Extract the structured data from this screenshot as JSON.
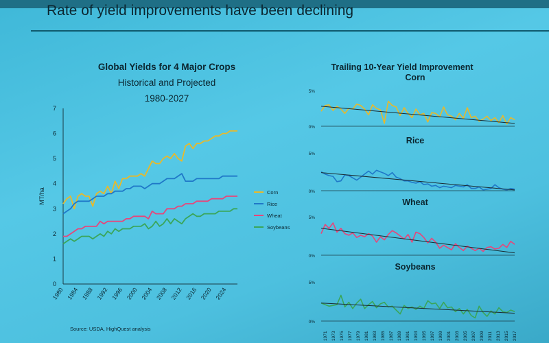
{
  "slide_title": "Rate of yield improvements have been declining",
  "source": "Source: USDA, HighQuest analysis",
  "chart_data": [
    {
      "type": "line",
      "title": "Global Yields for 4 Major Crops",
      "subtitle1": "Historical and Projected",
      "subtitle2": "1980-2027",
      "xlabel": "",
      "ylabel": "MT/ha",
      "xlim": [
        1980,
        2027
      ],
      "ylim": [
        0,
        7
      ],
      "yticks": [
        0,
        1,
        2,
        3,
        4,
        5,
        6,
        7
      ],
      "xticks": [
        1980,
        1984,
        1988,
        1992,
        1996,
        2000,
        2004,
        2008,
        2012,
        2016,
        2020,
        2024
      ],
      "x": [
        1980,
        1981,
        1982,
        1983,
        1984,
        1985,
        1986,
        1987,
        1988,
        1989,
        1990,
        1991,
        1992,
        1993,
        1994,
        1995,
        1996,
        1997,
        1998,
        1999,
        2000,
        2001,
        2002,
        2003,
        2004,
        2005,
        2006,
        2007,
        2008,
        2009,
        2010,
        2011,
        2012,
        2013,
        2014,
        2015,
        2016,
        2017,
        2018,
        2019,
        2020,
        2021,
        2022,
        2023,
        2024,
        2025,
        2026,
        2027
      ],
      "series": [
        {
          "name": "Corn",
          "color": "#e8b92a",
          "values": [
            3.2,
            3.4,
            3.5,
            3.0,
            3.5,
            3.6,
            3.5,
            3.5,
            3.1,
            3.6,
            3.7,
            3.6,
            3.9,
            3.6,
            4.1,
            3.8,
            4.2,
            4.2,
            4.3,
            4.3,
            4.3,
            4.4,
            4.3,
            4.6,
            4.9,
            4.8,
            4.8,
            5.0,
            5.1,
            5.0,
            5.2,
            5.0,
            4.9,
            5.5,
            5.6,
            5.4,
            5.6,
            5.6,
            5.7,
            5.7,
            5.8,
            5.9,
            5.9,
            6.0,
            6.0,
            6.1,
            6.1,
            6.1
          ]
        },
        {
          "name": "Rice",
          "color": "#1f78c8",
          "values": [
            2.8,
            2.9,
            3.0,
            3.2,
            3.3,
            3.3,
            3.3,
            3.3,
            3.4,
            3.5,
            3.5,
            3.5,
            3.6,
            3.6,
            3.7,
            3.7,
            3.7,
            3.8,
            3.8,
            3.9,
            3.9,
            3.9,
            3.8,
            3.9,
            4.0,
            4.0,
            4.0,
            4.1,
            4.2,
            4.2,
            4.2,
            4.3,
            4.4,
            4.1,
            4.1,
            4.1,
            4.2,
            4.2,
            4.2,
            4.2,
            4.2,
            4.2,
            4.2,
            4.3,
            4.3,
            4.3,
            4.3,
            4.3
          ]
        },
        {
          "name": "Wheat",
          "color": "#e8457a",
          "values": [
            1.9,
            1.9,
            2.0,
            2.1,
            2.2,
            2.2,
            2.3,
            2.3,
            2.3,
            2.3,
            2.5,
            2.4,
            2.5,
            2.5,
            2.5,
            2.5,
            2.5,
            2.6,
            2.6,
            2.7,
            2.7,
            2.7,
            2.7,
            2.6,
            2.9,
            2.8,
            2.8,
            2.8,
            3.0,
            3.0,
            3.0,
            3.1,
            3.1,
            3.2,
            3.2,
            3.2,
            3.3,
            3.3,
            3.3,
            3.3,
            3.4,
            3.4,
            3.4,
            3.4,
            3.5,
            3.5,
            3.5,
            3.5
          ]
        },
        {
          "name": "Soybeans",
          "color": "#3aa65a",
          "values": [
            1.6,
            1.7,
            1.8,
            1.7,
            1.8,
            1.9,
            1.9,
            1.9,
            1.8,
            1.9,
            2.0,
            1.9,
            2.1,
            2.0,
            2.2,
            2.1,
            2.2,
            2.2,
            2.2,
            2.3,
            2.3,
            2.3,
            2.4,
            2.2,
            2.3,
            2.5,
            2.3,
            2.4,
            2.6,
            2.4,
            2.6,
            2.5,
            2.4,
            2.6,
            2.7,
            2.8,
            2.7,
            2.7,
            2.8,
            2.8,
            2.8,
            2.8,
            2.9,
            2.9,
            2.9,
            2.9,
            3.0,
            3.0
          ]
        }
      ],
      "legend": [
        "Corn",
        "Rice",
        "Wheat",
        "Soybeans"
      ]
    },
    {
      "type": "line",
      "title": "Trailing 10-Year Yield Improvement",
      "ylim": [
        0,
        5
      ],
      "ytick_labels": [
        "0%",
        "5%"
      ],
      "x_labels": [
        "1971",
        "1973",
        "1975",
        "1977",
        "1979",
        "1981",
        "1983",
        "1985",
        "1987",
        "1989",
        "1991",
        "1993",
        "1995",
        "1997",
        "1999",
        "2001",
        "2003",
        "2005",
        "2007",
        "2009",
        "2011",
        "2013",
        "2015",
        "2017"
      ],
      "panels": [
        {
          "name": "Corn",
          "color": "#e8b92a",
          "trend": [
            2.8,
            0.4
          ],
          "values": [
            2.1,
            2.9,
            3.0,
            2.2,
            2.8,
            2.4,
            1.8,
            2.5,
            2.4,
            3.1,
            2.9,
            2.4,
            1.6,
            3.0,
            2.5,
            2.3,
            0.4,
            3.5,
            2.9,
            2.7,
            1.5,
            2.6,
            1.8,
            1.2,
            2.4,
            1.6,
            1.8,
            0.6,
            1.9,
            1.8,
            1.3,
            2.7,
            1.6,
            1.4,
            0.9,
            1.8,
            1.1,
            2.6,
            1.2,
            1.4,
            0.7,
            1.0,
            1.4,
            0.8,
            1.2,
            0.5,
            1.5,
            0.3,
            1.2,
            0.9
          ]
        },
        {
          "name": "Rice",
          "color": "#1f78c8",
          "trend": [
            2.4,
            0.1
          ],
          "values": [
            2.5,
            2.2,
            2.0,
            1.9,
            1.2,
            1.3,
            2.1,
            2.0,
            1.7,
            1.4,
            1.8,
            2.2,
            2.6,
            2.2,
            2.7,
            2.5,
            2.3,
            2.0,
            2.4,
            1.8,
            1.6,
            1.3,
            1.3,
            1.1,
            1.0,
            1.2,
            0.8,
            0.9,
            0.6,
            0.7,
            0.4,
            0.6,
            0.5,
            0.4,
            0.7,
            0.6,
            0.5,
            0.8,
            0.3,
            0.3,
            0.5,
            0.1,
            0.2,
            0.3,
            0.8,
            0.4,
            0.2,
            0.1,
            0.3,
            0.2
          ]
        },
        {
          "name": "Wheat",
          "color": "#e8457a",
          "trend": [
            3.5,
            0.3
          ],
          "values": [
            2.8,
            4.0,
            3.5,
            4.2,
            3.0,
            3.5,
            2.8,
            2.6,
            2.9,
            2.3,
            2.6,
            2.4,
            2.8,
            2.5,
            1.7,
            2.4,
            2.0,
            2.7,
            3.2,
            2.9,
            2.5,
            2.1,
            2.7,
            1.7,
            3.0,
            2.8,
            2.3,
            1.6,
            2.2,
            1.7,
            0.9,
            1.3,
            1.0,
            0.7,
            1.5,
            1.0,
            0.6,
            1.2,
            0.9,
            0.6,
            0.9,
            0.5,
            1.0,
            1.1,
            0.8,
            0.9,
            1.4,
            1.0,
            1.8,
            1.4
          ]
        },
        {
          "name": "Soybeans",
          "color": "#3aa65a",
          "trend": [
            2.3,
            1.0
          ],
          "values": [
            2.3,
            2.1,
            1.9,
            2.0,
            2.1,
            3.3,
            1.8,
            2.4,
            1.6,
            2.3,
            2.8,
            1.6,
            2.1,
            2.5,
            1.7,
            2.2,
            2.4,
            1.8,
            1.9,
            1.4,
            0.9,
            2.0,
            1.6,
            1.8,
            1.5,
            1.9,
            1.6,
            2.6,
            2.2,
            2.3,
            1.6,
            2.4,
            1.7,
            1.8,
            1.2,
            1.6,
            0.9,
            1.5,
            0.7,
            0.4,
            1.9,
            1.1,
            0.6,
            1.3,
            0.9,
            1.7,
            1.2,
            1.1,
            1.4,
            1.2
          ]
        }
      ]
    }
  ]
}
